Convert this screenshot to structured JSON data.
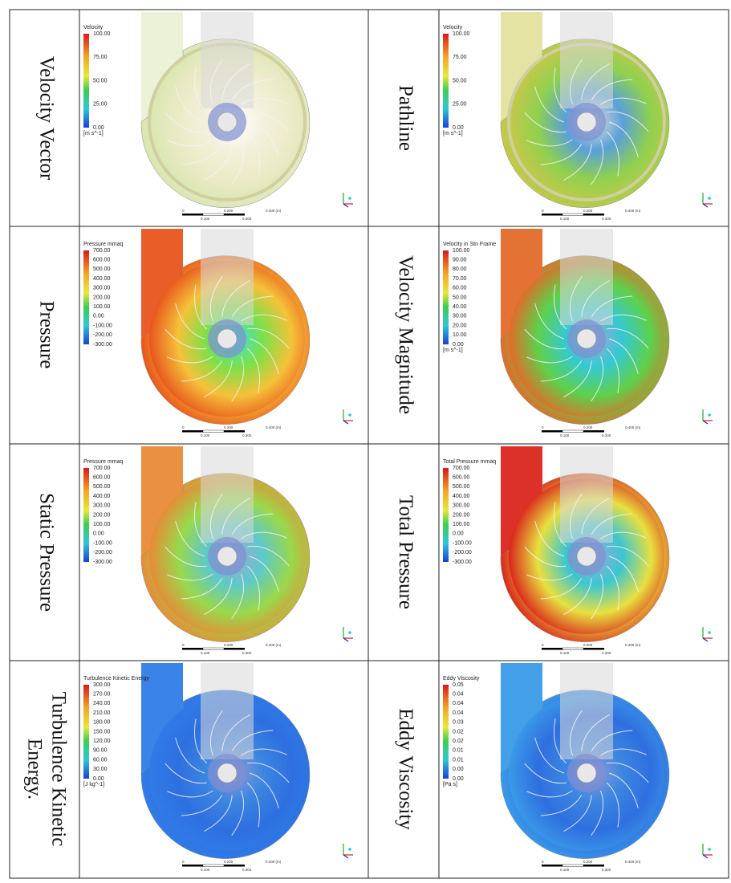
{
  "scale_bar": {
    "ticks_top": [
      "0",
      "0.200",
      "0.400 (m)"
    ],
    "ticks_bottom": [
      "0.100",
      "0.300"
    ]
  },
  "table": {
    "rows": [
      [
        {
          "label": [
            "Velocity Vector"
          ],
          "panel": {
            "legend_title": "Velocity",
            "legend_ticks": [
              "100.00",
              "75.00",
              "50.00",
              "25.00",
              "0.00"
            ],
            "unit": "[m s^-1]"
          }
        },
        {
          "label": [
            "Pathline"
          ],
          "panel": {
            "legend_title": "Velocity",
            "legend_ticks": [
              "100.00",
              "75.00",
              "50.00",
              "25.00",
              "0.00"
            ],
            "unit": "[m s^-1]"
          }
        }
      ],
      [
        {
          "label": [
            "Pressure"
          ],
          "panel": {
            "legend_title": "Pressure mmaq",
            "legend_ticks": [
              "700.00",
              "600.00",
              "500.00",
              "400.00",
              "300.00",
              "200.00",
              "100.00",
              "0.00",
              "-100.00",
              "-200.00",
              "-300.00"
            ]
          }
        },
        {
          "label": [
            "Velocity Magnitude"
          ],
          "panel": {
            "legend_title": "Velocity in Stn Frame",
            "legend_ticks": [
              "100.00",
              "90.00",
              "80.00",
              "70.00",
              "60.00",
              "50.00",
              "40.00",
              "30.00",
              "20.00",
              "10.00",
              "0.00"
            ],
            "unit": "[m s^-1]"
          }
        }
      ],
      [
        {
          "label": [
            "Static Pressure"
          ],
          "panel": {
            "legend_title": "Pressure mmaq",
            "legend_ticks": [
              "700.00",
              "600.00",
              "500.00",
              "400.00",
              "300.00",
              "200.00",
              "100.00",
              "0.00",
              "-100.00",
              "-200.00",
              "-300.00"
            ]
          }
        },
        {
          "label": [
            "Total Pressure"
          ],
          "panel": {
            "legend_title": "Total Pressure mmaq",
            "legend_ticks": [
              "700.00",
              "600.00",
              "500.00",
              "400.00",
              "300.00",
              "200.00",
              "100.00",
              "0.00",
              "-100.00",
              "-200.00",
              "-300.00"
            ]
          }
        }
      ],
      [
        {
          "label": [
            "Turbulence Kinetic",
            "Energy."
          ],
          "panel": {
            "legend_title": "Turbulence Kinetic Energy",
            "legend_ticks": [
              "300.00",
              "270.00",
              "240.00",
              "210.00",
              "180.00",
              "150.00",
              "120.00",
              "90.00",
              "60.00",
              "30.00",
              "0.00"
            ],
            "unit": "[J kg^-1]"
          }
        },
        {
          "label": [
            "Eddy Viscosity"
          ],
          "panel": {
            "legend_title": "Eddy Viscosity",
            "legend_ticks": [
              "0.05",
              "0.04",
              "0.04",
              "0.04",
              "0.03",
              "0.02",
              "0.02",
              "0.01",
              "0.01",
              "0.00",
              "0.00"
            ],
            "unit": "[Pa s]"
          }
        }
      ]
    ]
  }
}
